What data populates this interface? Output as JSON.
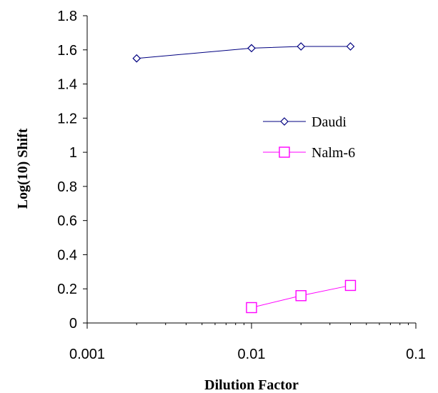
{
  "chart_data": {
    "type": "line",
    "xlabel": "Dilution Factor",
    "ylabel": "Log(10) Shift",
    "x_scale": "log",
    "xlim": [
      0.001,
      0.1
    ],
    "ylim": [
      0,
      1.8
    ],
    "x_ticks": [
      "0.001",
      "0.01",
      "0.1"
    ],
    "y_ticks": [
      "0",
      "0.2",
      "0.4",
      "0.6",
      "0.8",
      "1",
      "1.2",
      "1.4",
      "1.6",
      "1.8"
    ],
    "grid": false,
    "legend_position": "right-middle",
    "series": [
      {
        "name": "Daudi",
        "marker": "diamond",
        "color": "#000080",
        "x": [
          0.002,
          0.01,
          0.02,
          0.04
        ],
        "y": [
          1.55,
          1.61,
          1.62,
          1.62
        ]
      },
      {
        "name": "Nalm-6",
        "marker": "square",
        "color": "#FF00FF",
        "x": [
          0.01,
          0.02,
          0.04
        ],
        "y": [
          0.09,
          0.16,
          0.22
        ]
      }
    ]
  }
}
